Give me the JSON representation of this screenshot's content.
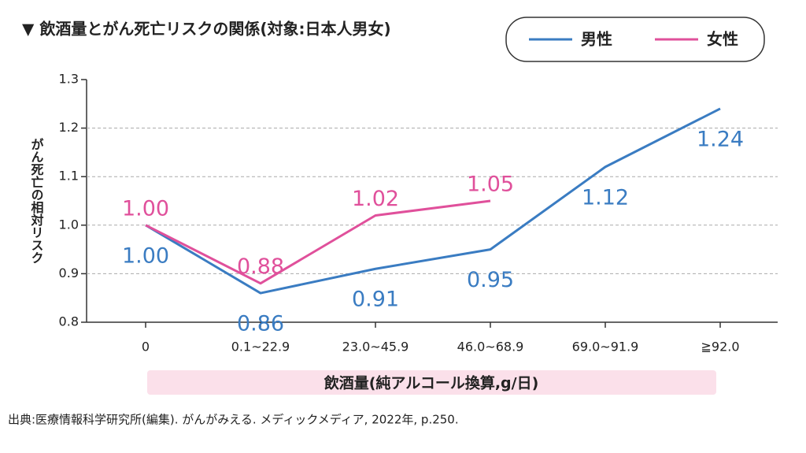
{
  "chart_data": {
    "type": "line",
    "title": "▼ 飲酒量とがん死亡リスクの関係(対象:日本人男女)",
    "y_label": "がん死亡の相対リスク",
    "x_label": "飲酒量(純アルコール換算,g/日)",
    "source": "出典:医療情報科学研究所(編集). がんがみえる. メディックメディア, 2022年, p.250.",
    "categories": [
      "0",
      "0.1~22.9",
      "23.0~45.9",
      "46.0~68.9",
      "69.0~91.9",
      "≧92.0"
    ],
    "series": [
      {
        "name": "男性",
        "color": "#3a7cc2",
        "values": [
          1.0,
          0.86,
          0.91,
          0.95,
          1.12,
          1.24
        ],
        "value_labels": [
          "1.00",
          "0.86",
          "0.91",
          "0.95",
          "1.12",
          "1.24"
        ]
      },
      {
        "name": "女性",
        "color": "#e0509b",
        "values": [
          1.0,
          0.88,
          1.02,
          1.05,
          null,
          null
        ],
        "value_labels": [
          "1.00",
          "0.88",
          "1.02",
          "1.05",
          null,
          null
        ]
      }
    ],
    "ylim": [
      0.8,
      1.3
    ],
    "yticks": [
      0.8,
      0.9,
      {
        "value": 1,
        "label": "1.0"
      },
      1.1,
      1.2,
      1.3
    ],
    "grid": true
  }
}
